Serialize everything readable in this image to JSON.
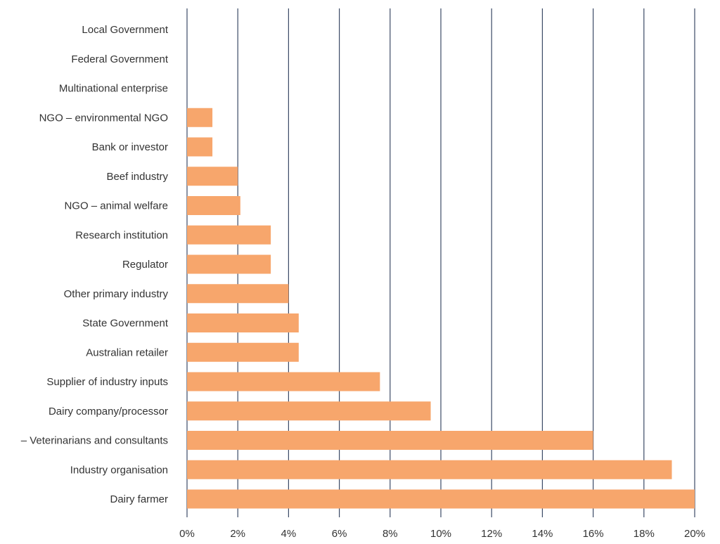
{
  "colors": {
    "bar": "#f7a66c",
    "grid": "#3b4a66",
    "text": "#333333",
    "background": "#ffffff"
  },
  "chart_data": {
    "type": "bar",
    "orientation": "horizontal",
    "title": "",
    "xlabel": "",
    "ylabel": "",
    "xlim": [
      0,
      20
    ],
    "grid": true,
    "categories": [
      "Local Government",
      "Federal Government",
      "Multinational enterprise",
      "NGO – environmental NGO",
      "Bank or investor",
      "Beef industry",
      "NGO – animal welfare",
      "Research institution",
      "Regulator",
      "Other primary industry",
      "State Government",
      "Australian retailer",
      "Supplier of industry inputs",
      "Dairy company/processor",
      "– Veterinarians and consultants",
      "Industry organisation",
      "Dairy farmer"
    ],
    "values": [
      0,
      0,
      0,
      1.0,
      1.0,
      2.0,
      2.1,
      3.3,
      3.3,
      4.0,
      4.4,
      4.4,
      7.6,
      9.6,
      16.0,
      19.1,
      20.0
    ],
    "ticks": [
      0,
      2,
      4,
      6,
      8,
      10,
      12,
      14,
      16,
      18,
      20
    ],
    "tick_labels": [
      "0%",
      "2%",
      "4%",
      "6%",
      "8%",
      "10%",
      "12%",
      "14%",
      "16%",
      "18%",
      "20%"
    ]
  }
}
